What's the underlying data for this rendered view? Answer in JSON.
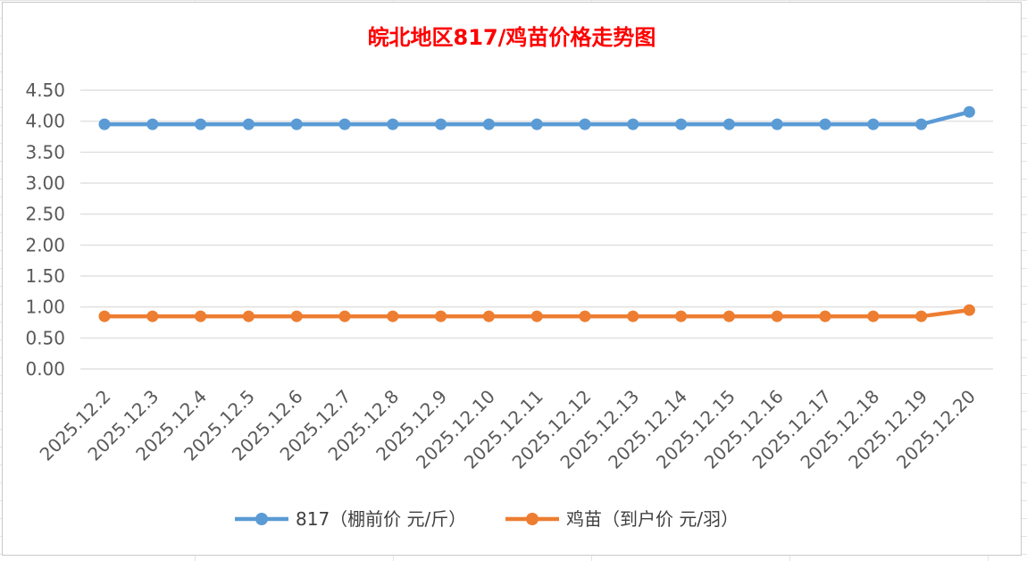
{
  "chart_data": {
    "type": "line",
    "title": "皖北地区817/鸡苗价格走势图",
    "categories": [
      "2025.12.2",
      "2025.12.3",
      "2025.12.4",
      "2025.12.5",
      "2025.12.6",
      "2025.12.7",
      "2025.12.8",
      "2025.12.9",
      "2025.12.10",
      "2025.12.11",
      "2025.12.12",
      "2025.12.13",
      "2025.12.14",
      "2025.12.15",
      "2025.12.16",
      "2025.12.17",
      "2025.12.18",
      "2025.12.19",
      "2025.12.20"
    ],
    "series": [
      {
        "name": "817（棚前价 元/斤）",
        "color": "#5B9BD5",
        "values": [
          3.95,
          3.95,
          3.95,
          3.95,
          3.95,
          3.95,
          3.95,
          3.95,
          3.95,
          3.95,
          3.95,
          3.95,
          3.95,
          3.95,
          3.95,
          3.95,
          3.95,
          3.95,
          4.15
        ]
      },
      {
        "name": "鸡苗（到户价 元/羽）",
        "color": "#ED7D31",
        "values": [
          0.85,
          0.85,
          0.85,
          0.85,
          0.85,
          0.85,
          0.85,
          0.85,
          0.85,
          0.85,
          0.85,
          0.85,
          0.85,
          0.85,
          0.85,
          0.85,
          0.85,
          0.85,
          0.95
        ]
      }
    ],
    "yticks": [
      "0.00",
      "0.50",
      "1.00",
      "1.50",
      "2.00",
      "2.50",
      "3.00",
      "3.50",
      "4.00",
      "4.50"
    ],
    "ylim": [
      0,
      4.5
    ],
    "grid": true,
    "legend_position": "bottom",
    "title_color": "#FF0000"
  }
}
